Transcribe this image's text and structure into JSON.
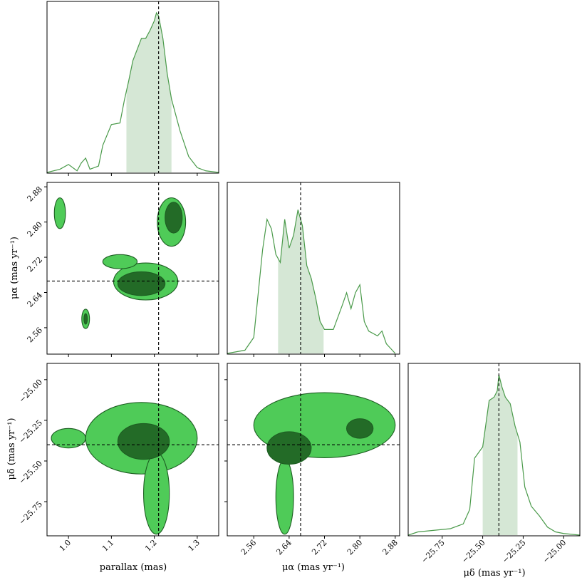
{
  "chart_data": {
    "type": "corner",
    "parameters": [
      {
        "name": "parallax (mas)",
        "range": [
          0.95,
          1.35
        ],
        "ticks": [
          "1.0",
          "1.1",
          "1.2",
          "1.3"
        ],
        "tick_values": [
          1.0,
          1.1,
          1.2,
          1.3
        ],
        "truth": 1.21,
        "shade": [
          1.135,
          1.24
        ]
      },
      {
        "name": "μα (mas yr⁻¹)",
        "range": [
          2.5,
          2.89
        ],
        "ticks": [
          "2.56",
          "2.64",
          "2.72",
          "2.80",
          "2.88"
        ],
        "tick_values": [
          2.56,
          2.64,
          2.72,
          2.8,
          2.88
        ],
        "truth": 2.666,
        "shade": [
          2.615,
          2.718
        ]
      },
      {
        "name": "μδ (mas yr⁻¹)",
        "range": [
          -25.96,
          -24.9
        ],
        "ticks": [
          "−25.75",
          "−25.50",
          "−25.25",
          "−25.00"
        ],
        "tick_values": [
          -25.75,
          -25.5,
          -25.25,
          -25.0
        ],
        "truth": -25.4,
        "shade": [
          -25.5,
          -25.285
        ]
      }
    ],
    "marginals": [
      {
        "param": 0,
        "x": [
          0.95,
          0.98,
          1.0,
          1.02,
          1.03,
          1.04,
          1.05,
          1.07,
          1.08,
          1.1,
          1.12,
          1.13,
          1.14,
          1.15,
          1.16,
          1.17,
          1.18,
          1.19,
          1.2,
          1.205,
          1.21,
          1.22,
          1.23,
          1.24,
          1.26,
          1.28,
          1.3,
          1.32,
          1.35
        ],
        "y": [
          0.0,
          0.02,
          0.05,
          0.01,
          0.06,
          0.09,
          0.02,
          0.04,
          0.17,
          0.3,
          0.31,
          0.45,
          0.57,
          0.7,
          0.77,
          0.84,
          0.84,
          0.89,
          0.95,
          1.0,
          0.98,
          0.84,
          0.62,
          0.46,
          0.26,
          0.1,
          0.03,
          0.01,
          0.0
        ]
      },
      {
        "param": 1,
        "x": [
          2.5,
          2.54,
          2.56,
          2.58,
          2.59,
          2.6,
          2.61,
          2.62,
          2.63,
          2.64,
          2.65,
          2.66,
          2.67,
          2.68,
          2.69,
          2.7,
          2.71,
          2.72,
          2.74,
          2.76,
          2.77,
          2.78,
          2.79,
          2.8,
          2.81,
          2.82,
          2.84,
          2.85,
          2.86,
          2.87,
          2.88
        ],
        "y": [
          0.0,
          0.02,
          0.1,
          0.65,
          0.84,
          0.78,
          0.62,
          0.57,
          0.84,
          0.66,
          0.74,
          0.9,
          0.8,
          0.55,
          0.47,
          0.35,
          0.2,
          0.15,
          0.15,
          0.3,
          0.38,
          0.28,
          0.38,
          0.43,
          0.2,
          0.14,
          0.11,
          0.14,
          0.06,
          0.03,
          0.0
        ]
      },
      {
        "param": 2,
        "x": [
          -25.96,
          -25.9,
          -25.8,
          -25.7,
          -25.62,
          -25.58,
          -25.55,
          -25.5,
          -25.46,
          -25.43,
          -25.41,
          -25.4,
          -25.38,
          -25.36,
          -25.33,
          -25.3,
          -25.27,
          -25.24,
          -25.2,
          -25.15,
          -25.1,
          -25.05,
          -25.0,
          -24.9
        ],
        "y": [
          0.0,
          0.02,
          0.03,
          0.04,
          0.07,
          0.16,
          0.48,
          0.55,
          0.84,
          0.86,
          0.9,
          1.0,
          0.92,
          0.86,
          0.82,
          0.68,
          0.58,
          0.3,
          0.18,
          0.12,
          0.05,
          0.02,
          0.01,
          0.0
        ]
      }
    ],
    "joint": [
      {
        "x_param": 0,
        "y_param": 1,
        "contours": [
          {
            "cx": 1.24,
            "cy": 2.8,
            "rx": 0.033,
            "ry": 0.055,
            "level": "outer"
          },
          {
            "cx": 1.245,
            "cy": 2.81,
            "rx": 0.02,
            "ry": 0.035,
            "level": "inner"
          },
          {
            "cx": 1.18,
            "cy": 2.665,
            "rx": 0.075,
            "ry": 0.042,
            "level": "outer"
          },
          {
            "cx": 1.17,
            "cy": 2.66,
            "rx": 0.055,
            "ry": 0.027,
            "level": "inner"
          },
          {
            "cx": 1.12,
            "cy": 2.71,
            "rx": 0.04,
            "ry": 0.016,
            "level": "outer"
          },
          {
            "cx": 0.98,
            "cy": 2.82,
            "rx": 0.013,
            "ry": 0.035,
            "level": "outer"
          },
          {
            "cx": 1.04,
            "cy": 2.58,
            "rx": 0.009,
            "ry": 0.022,
            "level": "outer"
          },
          {
            "cx": 1.04,
            "cy": 2.58,
            "rx": 0.004,
            "ry": 0.012,
            "level": "inner"
          }
        ]
      },
      {
        "x_param": 0,
        "y_param": 2,
        "contours": [
          {
            "cx": 1.17,
            "cy": -25.36,
            "rx": 0.13,
            "ry": 0.22,
            "level": "outer"
          },
          {
            "cx": 1.175,
            "cy": -25.38,
            "rx": 0.06,
            "ry": 0.11,
            "level": "inner"
          },
          {
            "cx": 1.205,
            "cy": -25.7,
            "rx": 0.03,
            "ry": 0.25,
            "level": "outer"
          },
          {
            "cx": 1.0,
            "cy": -25.36,
            "rx": 0.04,
            "ry": 0.06,
            "level": "outer"
          }
        ]
      },
      {
        "x_param": 1,
        "y_param": 2,
        "contours": [
          {
            "cx": 2.72,
            "cy": -25.28,
            "rx": 0.16,
            "ry": 0.2,
            "level": "outer"
          },
          {
            "cx": 2.64,
            "cy": -25.42,
            "rx": 0.05,
            "ry": 0.1,
            "level": "inner"
          },
          {
            "cx": 2.8,
            "cy": -25.3,
            "rx": 0.03,
            "ry": 0.06,
            "level": "inner"
          },
          {
            "cx": 2.63,
            "cy": -25.72,
            "rx": 0.02,
            "ry": 0.23,
            "level": "outer"
          }
        ]
      }
    ],
    "colors": {
      "line": "#4a9a4a",
      "shade": "#d5e7d5",
      "outer": "#4fcb58",
      "inner": "#236b27",
      "edge": "#1d5e22",
      "truth": "#000000"
    }
  }
}
